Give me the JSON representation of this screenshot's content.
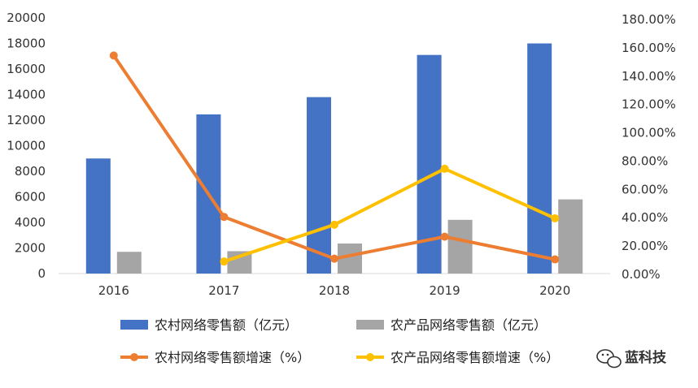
{
  "chart_data": {
    "type": "bar+line",
    "categories": [
      "2016",
      "2017",
      "2018",
      "2019",
      "2020"
    ],
    "series": [
      {
        "name": "农村网络零售额（亿元）",
        "type": "bar",
        "axis": "left",
        "color": "#4472C4",
        "values": [
          9000,
          12450,
          13800,
          17100,
          18000
        ]
      },
      {
        "name": "农产品网络零售额（亿元）",
        "type": "bar",
        "axis": "left",
        "color": "#A5A5A5",
        "values": [
          1700,
          1750,
          2350,
          4200,
          5800
        ]
      },
      {
        "name": "农村网络零售额增速（%）",
        "type": "line",
        "axis": "right",
        "color": "#ED7D31",
        "values": [
          154,
          40,
          10.5,
          26,
          10
        ]
      },
      {
        "name": "农产品网络零售额增速（%）",
        "type": "line",
        "axis": "right",
        "color": "#FFC000",
        "values": [
          null,
          8.5,
          34.5,
          74,
          39
        ]
      }
    ],
    "left_axis": {
      "min": 0,
      "max": 20000,
      "ticks": [
        "0",
        "2000",
        "4000",
        "6000",
        "8000",
        "10000",
        "12000",
        "14000",
        "16000",
        "18000",
        "20000"
      ]
    },
    "right_axis": {
      "min": 0,
      "max": 180,
      "ticks": [
        "0.00%",
        "20.00%",
        "40.00%",
        "60.00%",
        "80.00%",
        "100.00%",
        "120.00%",
        "140.00%",
        "160.00%",
        "180.00%"
      ]
    },
    "gridlines": false,
    "legend_position": "bottom"
  },
  "watermark": {
    "text": "蓝科技",
    "icon": "wechat-icon"
  }
}
